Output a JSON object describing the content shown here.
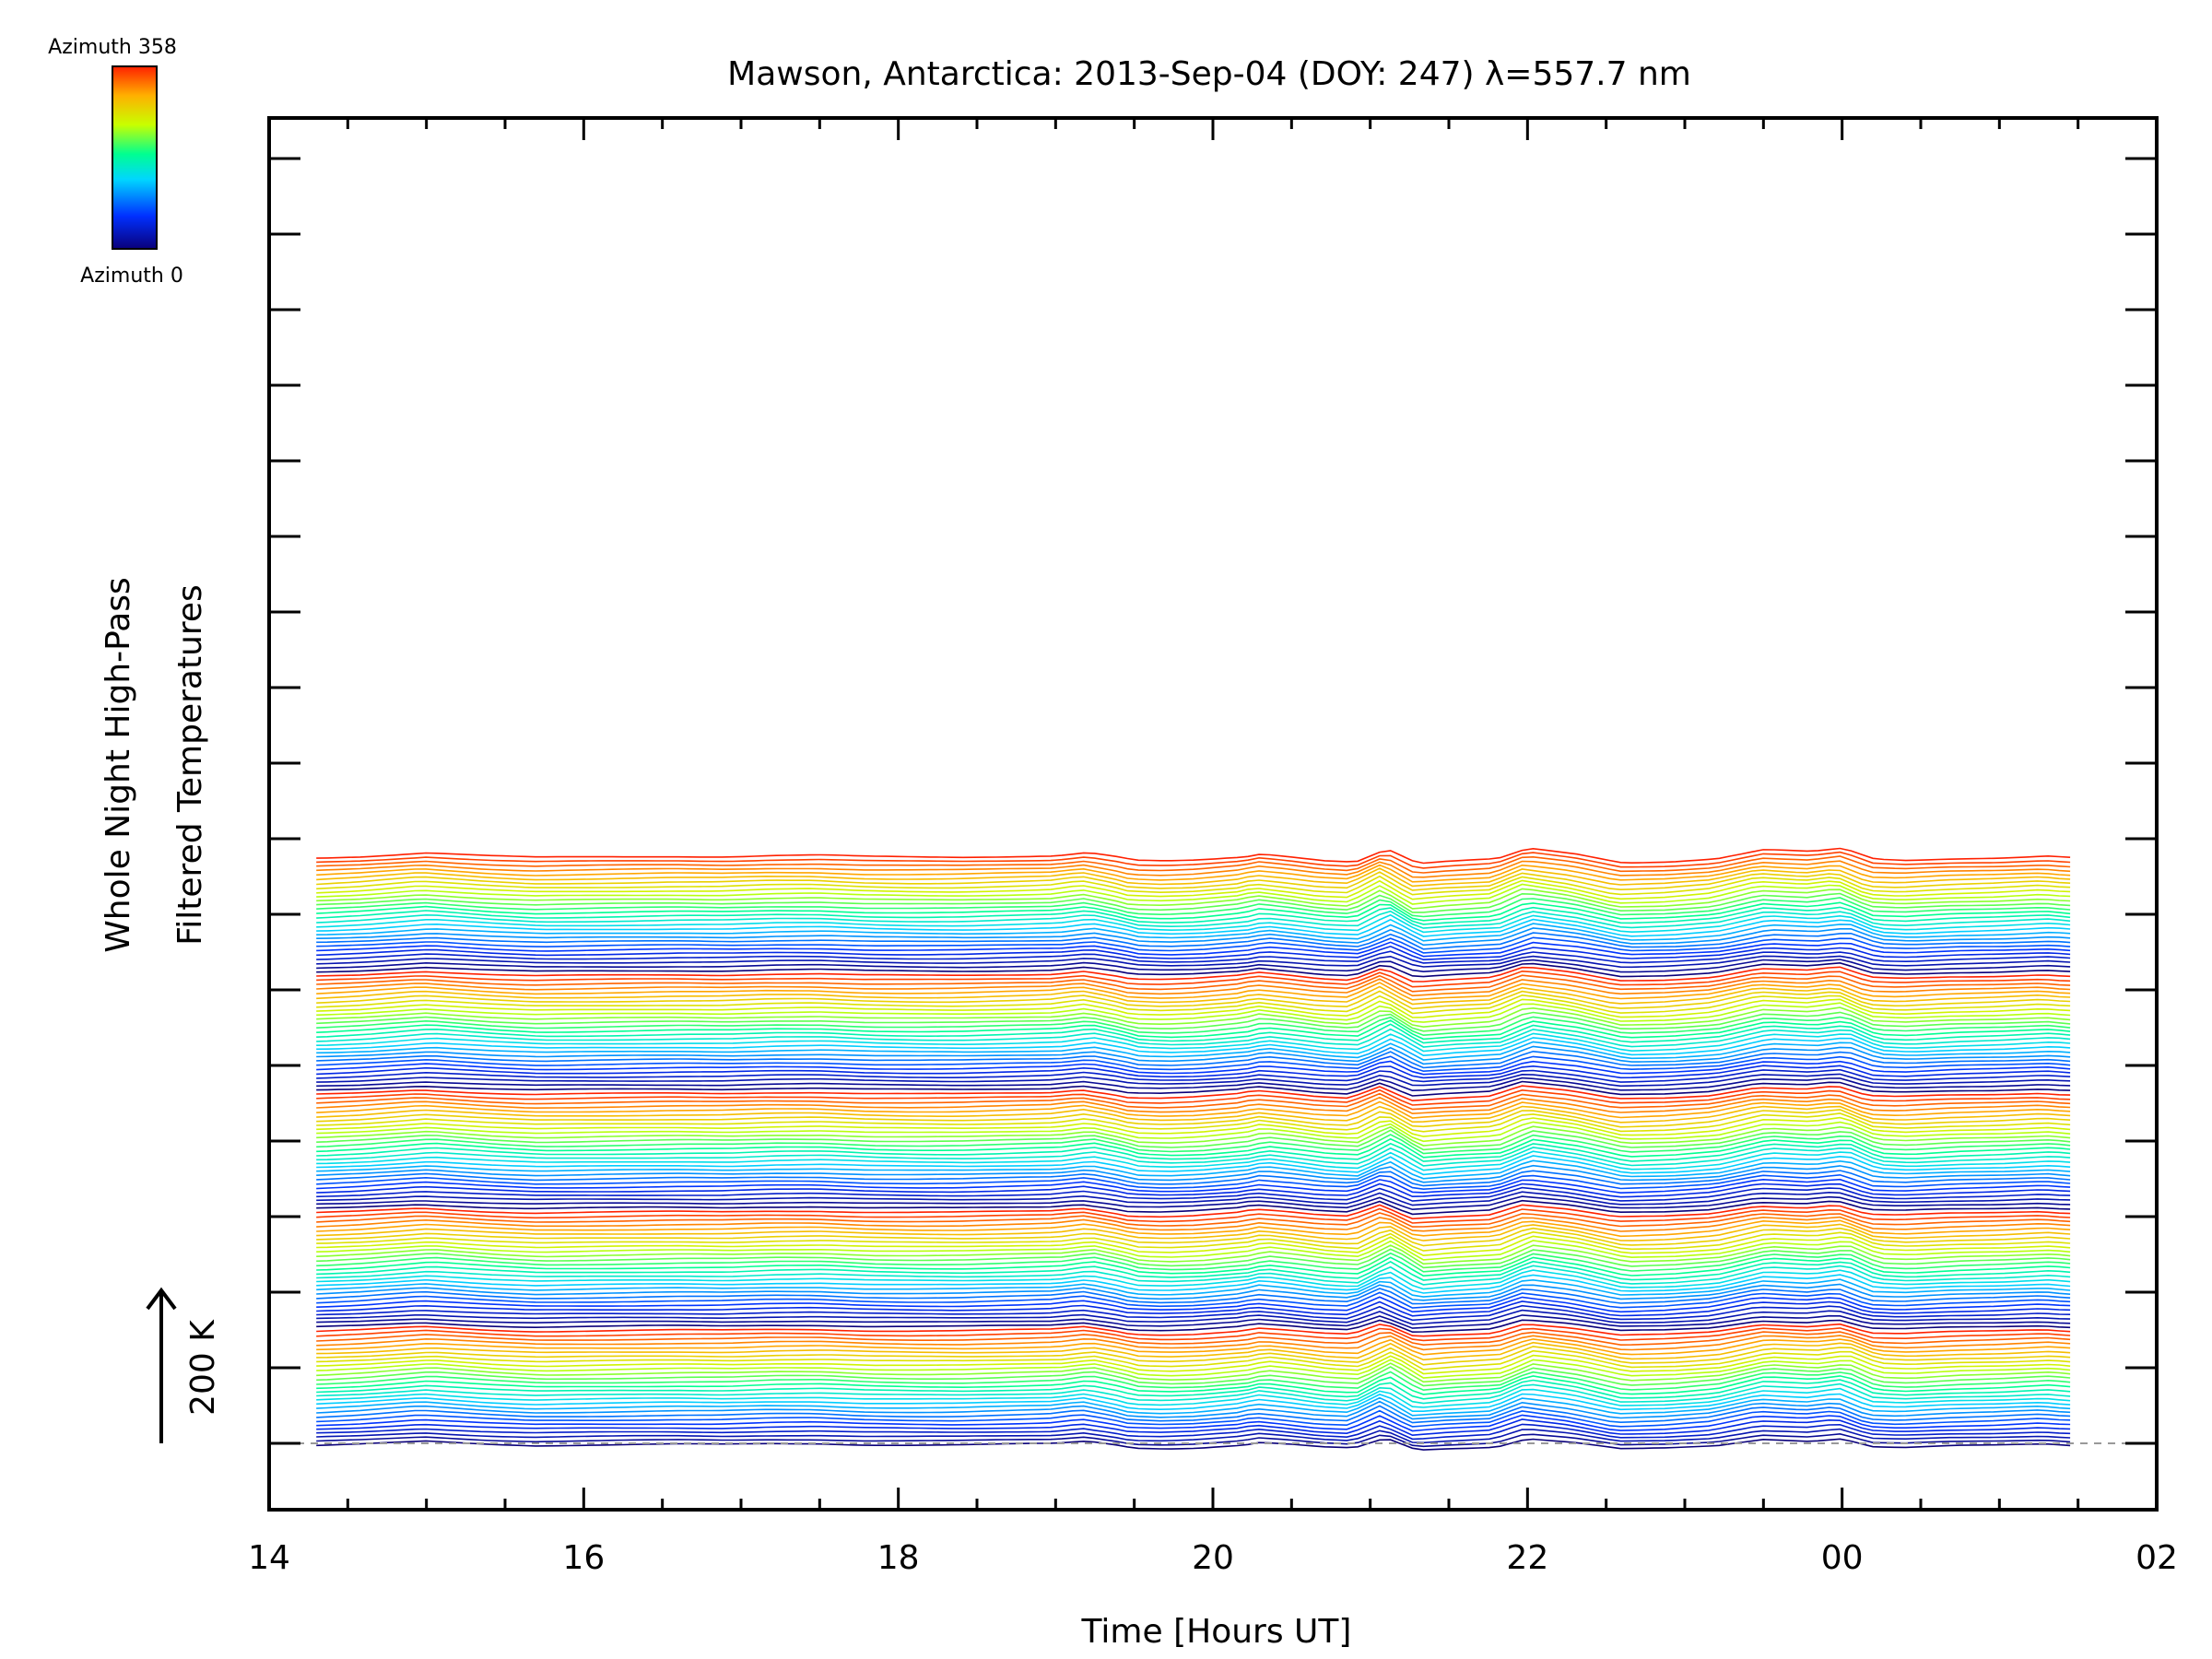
{
  "chart_data": {
    "type": "line",
    "title": "Mawson, Antarctica: 2013-Sep-04 (DOY: 247) λ=557.7 nm",
    "xlabel": "Time [Hours UT]",
    "ylabel_line1": "Whole Night High-Pass",
    "ylabel_line2": "Filtered Temperatures",
    "scale_bar_label": "200 K",
    "scale_bar_kelvin": 200,
    "x_ticks": [
      "14",
      "16",
      "18",
      "20",
      "22",
      "00",
      "02"
    ],
    "x_tick_hours": [
      14,
      16,
      18,
      20,
      22,
      24,
      26
    ],
    "xlim_hours": [
      14,
      26
    ],
    "x_range_hours": [
      14.3,
      25.45
    ],
    "colorbar": {
      "top_label": "Azimuth 358",
      "bottom_label": "Azimuth 0",
      "min": 0,
      "max": 358
    },
    "trace_count": 140,
    "trace_offset_kelvin": 20,
    "colormap": "rainbow",
    "profile_hours": [
      14.3,
      14.6,
      14.8,
      15.0,
      15.2,
      15.4,
      15.7,
      16.0,
      16.3,
      16.6,
      16.9,
      17.2,
      17.5,
      17.8,
      18.1,
      18.4,
      18.7,
      19.0,
      19.2,
      19.4,
      19.5,
      19.7,
      19.9,
      20.2,
      20.3,
      20.5,
      20.7,
      20.9,
      21.1,
      21.3,
      21.5,
      21.8,
      22.0,
      22.3,
      22.6,
      22.9,
      23.2,
      23.5,
      23.8,
      24.0,
      24.2,
      24.4,
      24.7,
      25.0,
      25.3,
      25.45
    ],
    "profile_kelvin": [
      -14,
      -6,
      3,
      12,
      4,
      -4,
      -12,
      -10,
      -8,
      -6,
      -7,
      -2,
      -1,
      -8,
      -10,
      -10,
      -6,
      -2,
      13,
      -10,
      -26,
      -30,
      -26,
      -10,
      5,
      -8,
      -24,
      -30,
      30,
      -40,
      -30,
      -20,
      30,
      5,
      -35,
      -30,
      -16,
      25,
      15,
      30,
      -20,
      -25,
      -16,
      -12,
      -4,
      -12
    ]
  }
}
